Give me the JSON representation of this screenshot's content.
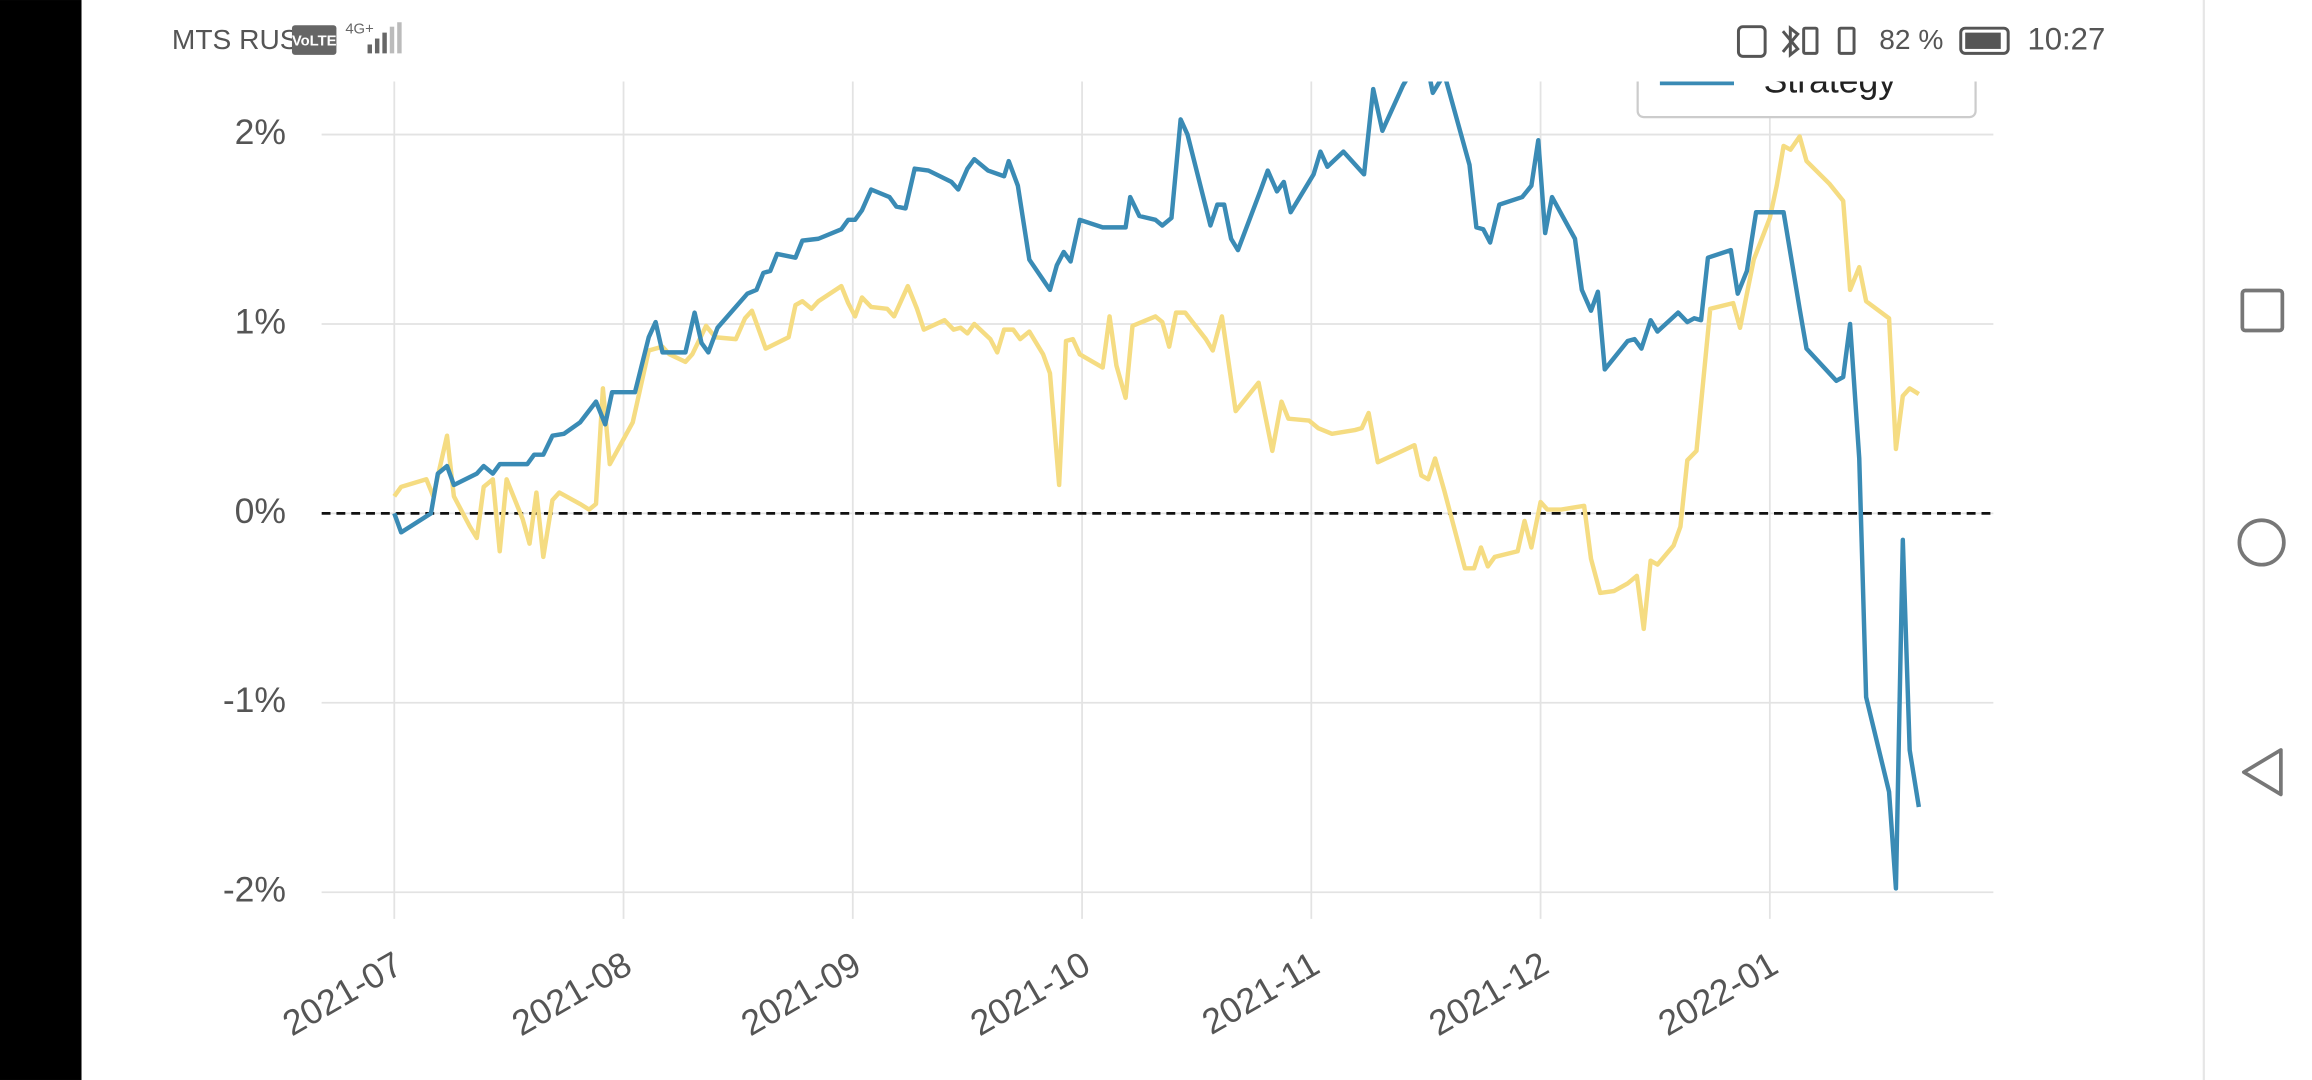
{
  "status_bar": {
    "carrier": "MTS RUS",
    "volte": "VoLTE",
    "network": "4G+",
    "battery": "82 %",
    "time": "10:27"
  },
  "chart_data": {
    "type": "line",
    "xlim": [
      -0.317,
      6.975
    ],
    "xticks": [
      {
        "value": 0,
        "label": "2021-07"
      },
      {
        "value": 1,
        "label": "2021-08"
      },
      {
        "value": 2,
        "label": "2021-09"
      },
      {
        "value": 3,
        "label": "2021-10"
      },
      {
        "value": 4,
        "label": "2021-11"
      },
      {
        "value": 5,
        "label": "2021-12"
      },
      {
        "value": 6,
        "label": "2022-01"
      }
    ],
    "ylim": [
      -2.18,
      2.28
    ],
    "yticks": [
      {
        "value": -2,
        "label": "-2%"
      },
      {
        "value": -1,
        "label": "-1%"
      },
      {
        "value": 0,
        "label": "0%"
      },
      {
        "value": 1,
        "label": "1%"
      },
      {
        "value": 2,
        "label": "2%"
      }
    ],
    "grid": true,
    "hline": 0,
    "legend": "upper right",
    "series": [
      {
        "name": "Strategy",
        "color": "#3a8bb5",
        "x": [
          0.0,
          0.03,
          0.16,
          0.19,
          0.23,
          0.26,
          0.36,
          0.39,
          0.43,
          0.46,
          0.58,
          0.61,
          0.65,
          0.69,
          0.74,
          0.81,
          0.88,
          0.92,
          0.95,
          1.05,
          1.11,
          1.14,
          1.17,
          1.27,
          1.31,
          1.34,
          1.37,
          1.41,
          1.54,
          1.58,
          1.61,
          1.64,
          1.67,
          1.75,
          1.78,
          1.85,
          1.95,
          1.98,
          2.01,
          2.04,
          2.08,
          2.16,
          2.19,
          2.23,
          2.27,
          2.33,
          2.43,
          2.46,
          2.5,
          2.53,
          2.59,
          2.66,
          2.68,
          2.72,
          2.77,
          2.86,
          2.89,
          2.92,
          2.95,
          2.99,
          3.09,
          3.19,
          3.21,
          3.25,
          3.32,
          3.35,
          3.39,
          3.43,
          3.46,
          3.56,
          3.59,
          3.62,
          3.65,
          3.68,
          3.78,
          3.81,
          3.85,
          3.88,
          3.91,
          4.01,
          4.04,
          4.07,
          4.14,
          4.23,
          4.27,
          4.31,
          4.4,
          4.45,
          4.5,
          4.53,
          4.58,
          4.69,
          4.72,
          4.75,
          4.78,
          4.82,
          4.92,
          4.96,
          4.99,
          5.02,
          5.05,
          5.15,
          5.18,
          5.22,
          5.25,
          5.28,
          5.38,
          5.41,
          5.44,
          5.48,
          5.51,
          5.6,
          5.64,
          5.67,
          5.7,
          5.73,
          5.83,
          5.86,
          5.9,
          5.94,
          6.04,
          6.06,
          6.13,
          6.16,
          6.29,
          6.32,
          6.35,
          6.39,
          6.42,
          6.52,
          6.55,
          6.58,
          6.61,
          6.65
        ],
        "values": [
          0.0,
          -0.1,
          0.0,
          0.21,
          0.25,
          0.15,
          0.21,
          0.25,
          0.21,
          0.26,
          0.26,
          0.31,
          0.31,
          0.41,
          0.42,
          0.48,
          0.59,
          0.47,
          0.64,
          0.64,
          0.93,
          1.01,
          0.85,
          0.85,
          1.06,
          0.9,
          0.85,
          0.98,
          1.16,
          1.18,
          1.27,
          1.28,
          1.37,
          1.35,
          1.44,
          1.45,
          1.5,
          1.55,
          1.55,
          1.6,
          1.71,
          1.67,
          1.62,
          1.61,
          1.82,
          1.81,
          1.75,
          1.71,
          1.82,
          1.87,
          1.81,
          1.78,
          1.86,
          1.73,
          1.34,
          1.18,
          1.31,
          1.38,
          1.33,
          1.55,
          1.51,
          1.51,
          1.67,
          1.57,
          1.55,
          1.52,
          1.56,
          2.08,
          2.0,
          1.52,
          1.63,
          1.63,
          1.45,
          1.39,
          1.71,
          1.81,
          1.7,
          1.75,
          1.59,
          1.79,
          1.91,
          1.83,
          1.91,
          1.79,
          2.24,
          2.02,
          2.26,
          2.36,
          2.4,
          2.22,
          2.32,
          1.84,
          1.51,
          1.5,
          1.43,
          1.63,
          1.67,
          1.73,
          1.97,
          1.48,
          1.67,
          1.45,
          1.18,
          1.07,
          1.17,
          0.76,
          0.91,
          0.92,
          0.87,
          1.02,
          0.96,
          1.06,
          1.01,
          1.03,
          1.02,
          1.35,
          1.39,
          1.16,
          1.28,
          1.59,
          1.59,
          1.59,
          1.08,
          0.87,
          0.7,
          0.72,
          1.0,
          0.29,
          -0.97,
          -1.47,
          -1.98,
          -0.14,
          -1.25,
          -1.55
        ]
      },
      {
        "color": "#f5dc82",
        "x": [
          0.0,
          0.03,
          0.14,
          0.17,
          0.23,
          0.26,
          0.33,
          0.36,
          0.39,
          0.43,
          0.46,
          0.49,
          0.56,
          0.59,
          0.62,
          0.65,
          0.69,
          0.72,
          0.81,
          0.85,
          0.88,
          0.91,
          0.94,
          1.04,
          1.11,
          1.17,
          1.2,
          1.27,
          1.3,
          1.36,
          1.4,
          1.49,
          1.53,
          1.56,
          1.62,
          1.72,
          1.75,
          1.78,
          1.82,
          1.85,
          1.95,
          1.98,
          2.01,
          2.04,
          2.08,
          2.15,
          2.18,
          2.24,
          2.28,
          2.31,
          2.4,
          2.44,
          2.47,
          2.5,
          2.53,
          2.6,
          2.63,
          2.66,
          2.7,
          2.73,
          2.77,
          2.83,
          2.86,
          2.9,
          2.93,
          2.96,
          2.99,
          3.09,
          3.12,
          3.15,
          3.19,
          3.22,
          3.32,
          3.35,
          3.38,
          3.41,
          3.45,
          3.54,
          3.57,
          3.61,
          3.67,
          3.77,
          3.8,
          3.83,
          3.87,
          3.9,
          3.99,
          4.03,
          4.09,
          4.19,
          4.22,
          4.25,
          4.29,
          4.38,
          4.45,
          4.48,
          4.51,
          4.54,
          4.58,
          4.67,
          4.71,
          4.74,
          4.77,
          4.8,
          4.9,
          4.93,
          4.96,
          5.0,
          5.03,
          5.09,
          5.19,
          5.22,
          5.26,
          5.32,
          5.38,
          5.42,
          5.45,
          5.48,
          5.51,
          5.58,
          5.61,
          5.64,
          5.68,
          5.74,
          5.84,
          5.87,
          5.9,
          5.93,
          6.0,
          6.03,
          6.06,
          6.09,
          6.13,
          6.16,
          6.26,
          6.32,
          6.35,
          6.39,
          6.42,
          6.52,
          6.55,
          6.58,
          6.61,
          6.65
        ],
        "values": [
          0.09,
          0.14,
          0.18,
          0.09,
          0.41,
          0.09,
          -0.07,
          -0.13,
          0.14,
          0.18,
          -0.2,
          0.18,
          -0.03,
          -0.16,
          0.11,
          -0.23,
          0.07,
          0.11,
          0.05,
          0.02,
          0.05,
          0.66,
          0.26,
          0.48,
          0.86,
          0.88,
          0.84,
          0.8,
          0.84,
          0.99,
          0.93,
          0.92,
          1.03,
          1.07,
          0.87,
          0.93,
          1.1,
          1.12,
          1.08,
          1.12,
          1.2,
          1.11,
          1.04,
          1.14,
          1.09,
          1.08,
          1.04,
          1.2,
          1.08,
          0.97,
          1.02,
          0.97,
          0.98,
          0.95,
          1.0,
          0.92,
          0.85,
          0.97,
          0.97,
          0.92,
          0.96,
          0.84,
          0.74,
          0.15,
          0.91,
          0.92,
          0.84,
          0.77,
          1.04,
          0.78,
          0.61,
          0.99,
          1.04,
          1.01,
          0.88,
          1.06,
          1.06,
          0.92,
          0.86,
          1.04,
          0.54,
          0.69,
          0.51,
          0.33,
          0.59,
          0.5,
          0.49,
          0.45,
          0.42,
          0.44,
          0.45,
          0.53,
          0.27,
          0.32,
          0.36,
          0.2,
          0.18,
          0.29,
          0.12,
          -0.29,
          -0.29,
          -0.18,
          -0.28,
          -0.23,
          -0.2,
          -0.04,
          -0.18,
          0.06,
          0.02,
          0.02,
          0.04,
          -0.24,
          -0.42,
          -0.41,
          -0.37,
          -0.33,
          -0.61,
          -0.25,
          -0.27,
          -0.17,
          -0.07,
          0.28,
          0.33,
          1.08,
          1.11,
          0.98,
          1.16,
          1.34,
          1.56,
          1.73,
          1.94,
          1.92,
          1.99,
          1.86,
          1.74,
          1.65,
          1.18,
          1.3,
          1.12,
          1.03,
          0.34,
          0.62,
          0.66,
          0.63
        ]
      }
    ]
  }
}
